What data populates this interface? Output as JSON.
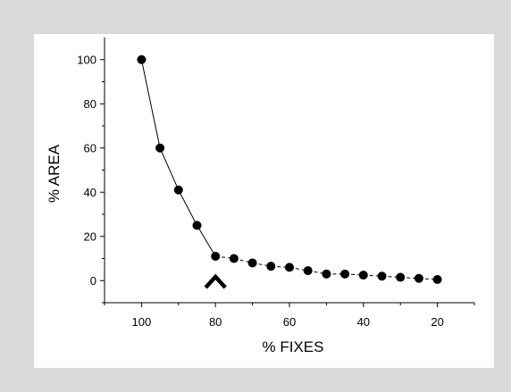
{
  "chart_data": {
    "type": "line",
    "xlabel": "% FIXES",
    "ylabel": "% AREA",
    "x_reversed": true,
    "xlim": [
      110,
      10
    ],
    "ylim": [
      -10,
      110
    ],
    "x_ticks": [
      100,
      80,
      60,
      40,
      20
    ],
    "y_ticks": [
      0,
      20,
      40,
      60,
      80,
      100
    ],
    "grid": false,
    "marker_color": "#000000",
    "line_color": "#000000",
    "annotation": {
      "type": "caret-marker",
      "x": 80
    },
    "series": [
      {
        "x": [
          100,
          95,
          90,
          85,
          80,
          75,
          70,
          65,
          60,
          55,
          50,
          45,
          40,
          35,
          30,
          25,
          20
        ],
        "y": [
          100,
          60,
          41,
          25,
          11,
          10,
          8,
          6.5,
          6,
          4.5,
          3,
          3,
          2.5,
          2,
          1.5,
          1,
          0.5
        ],
        "segment_styles": [
          "solid",
          "solid",
          "solid",
          "solid",
          "dashed",
          "dashed",
          "dashed",
          "dashed",
          "dashed",
          "dashed",
          "dashed",
          "dashed",
          "dashed",
          "dashed",
          "dashed",
          "dashed"
        ]
      }
    ]
  }
}
